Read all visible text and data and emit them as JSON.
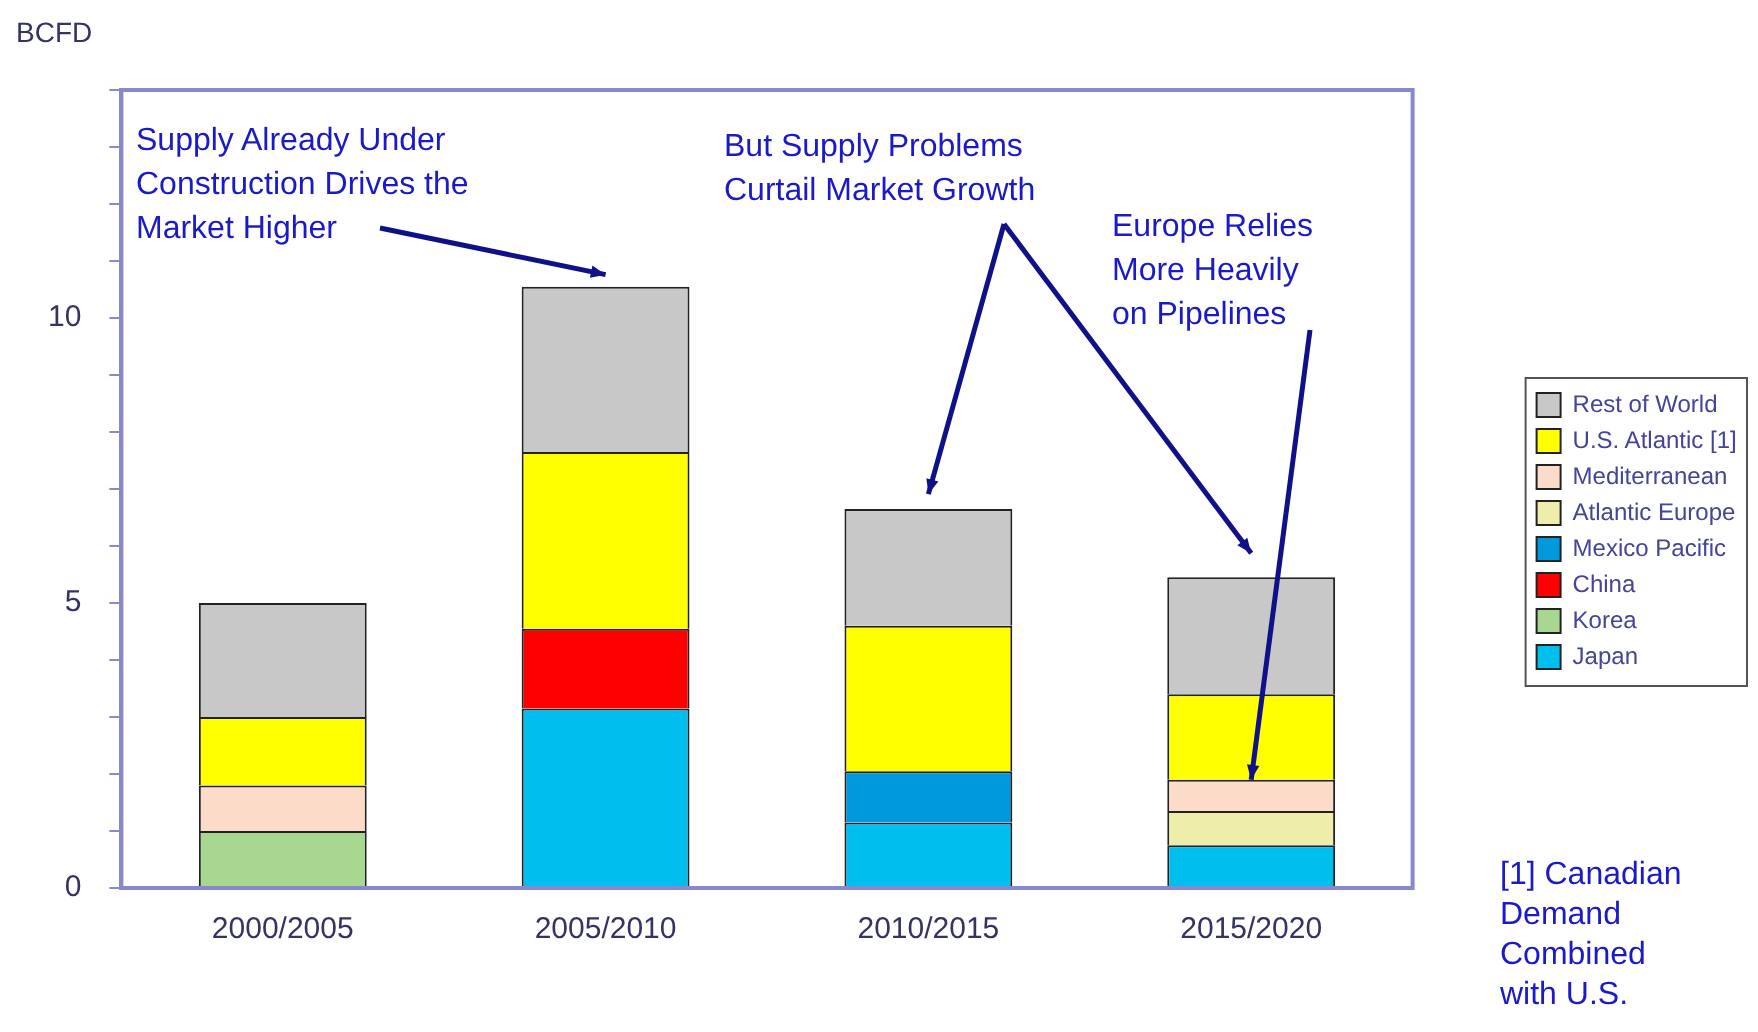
{
  "chart_data": {
    "type": "bar",
    "ylabel": "BCFD",
    "stacked": true,
    "grid": false,
    "legend": "right",
    "categories": [
      "2000/2005",
      "2005/2010",
      "2010/2015",
      "2015/2020"
    ],
    "ylim": [
      0,
      14
    ],
    "yticks": [
      0,
      {
        "value": 1,
        "label": null
      },
      {
        "value": 2,
        "label": null
      },
      {
        "value": 3,
        "label": null
      },
      {
        "value": 4,
        "label": null
      },
      5,
      {
        "value": 6,
        "label": null
      },
      {
        "value": 7,
        "label": null
      },
      {
        "value": 8,
        "label": null
      },
      {
        "value": 9,
        "label": null
      },
      10,
      {
        "value": 11,
        "label": null
      },
      {
        "value": 12,
        "label": null
      },
      {
        "value": 13,
        "label": null
      },
      {
        "value": 14,
        "label": null
      }
    ],
    "series": [
      {
        "name": "Japan",
        "color": "#00bfef",
        "values": [
          null,
          3.15,
          1.15,
          0.75
        ]
      },
      {
        "name": "Korea",
        "color": "#a8d890",
        "values": [
          1.0,
          null,
          null,
          null
        ]
      },
      {
        "name": "China",
        "color": "#ff0000",
        "values": [
          null,
          1.4,
          null,
          null
        ]
      },
      {
        "name": "Mexico Pacific",
        "color": "#0099dd",
        "values": [
          null,
          null,
          0.9,
          null
        ]
      },
      {
        "name": "Atlantic Europe",
        "color": "#eeeeaa",
        "values": [
          null,
          null,
          null,
          0.6
        ]
      },
      {
        "name": "Mediterranean",
        "color": "#fcdcc8",
        "values": [
          0.8,
          null,
          null,
          0.55
        ]
      },
      {
        "name": "U.S. Atlantic [1]",
        "color": "#ffff00",
        "values": [
          1.2,
          3.1,
          2.55,
          1.5
        ]
      },
      {
        "name": "Rest of World",
        "color": "#c8c8c8",
        "values": [
          2.0,
          2.9,
          2.05,
          2.05
        ]
      }
    ],
    "annotations": [
      {
        "text": "Supply Already Under Construction Drives the Market Higher",
        "x": "2005/2010",
        "y": 10.55
      },
      {
        "text": "But Supply Problems Curtail Market Growth",
        "x": "2010/2015",
        "y": 6.7
      },
      {
        "text": "Europe Relies More Heavily on Pipelines",
        "x": "2015/2020",
        "y": 1.9
      },
      "[1] Canadian Demand Combined with U.S."
    ]
  }
}
